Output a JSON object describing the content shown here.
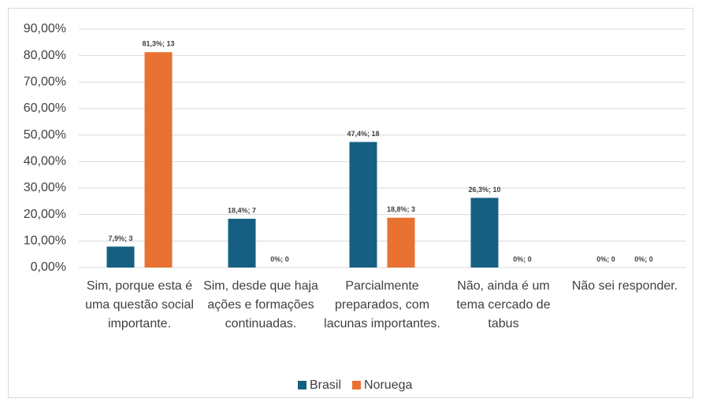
{
  "chart_data": {
    "type": "bar",
    "categories": [
      "Sim, porque esta é uma questão social importante.",
      "Sim, desde que haja ações e formações continuadas.",
      "Parcialmente preparados, com lacunas importantes.",
      "Não, ainda é um tema cercado de tabus",
      "Não sei responder."
    ],
    "series": [
      {
        "name": "Brasil",
        "color": "#156082",
        "values": [
          7.9,
          18.4,
          47.4,
          26.3,
          0
        ],
        "value_labels": [
          "7,9%; 3",
          "18,4%; 7",
          "47,4%; 18",
          "26,3%; 10",
          "0%; 0"
        ]
      },
      {
        "name": "Noruega",
        "color": "#e97132",
        "values": [
          81.3,
          0,
          18.8,
          0,
          0
        ],
        "value_labels": [
          "81,3%; 13",
          "0%; 0",
          "18,8%; 3",
          "0%; 0",
          "0%; 0"
        ]
      }
    ],
    "ylim": [
      0,
      90
    ],
    "yticks": [
      {
        "value": 0,
        "label": "0,00%"
      },
      {
        "value": 10,
        "label": "10,00%"
      },
      {
        "value": 20,
        "label": "20,00%"
      },
      {
        "value": 30,
        "label": "30,00%"
      },
      {
        "value": 40,
        "label": "40,00%"
      },
      {
        "value": 50,
        "label": "50,00%"
      },
      {
        "value": 60,
        "label": "60,00%"
      },
      {
        "value": 70,
        "label": "70,00%"
      },
      {
        "value": 80,
        "label": "80,00%"
      },
      {
        "value": 90,
        "label": "90,00%"
      }
    ],
    "grid": true,
    "legend": "bottom"
  }
}
